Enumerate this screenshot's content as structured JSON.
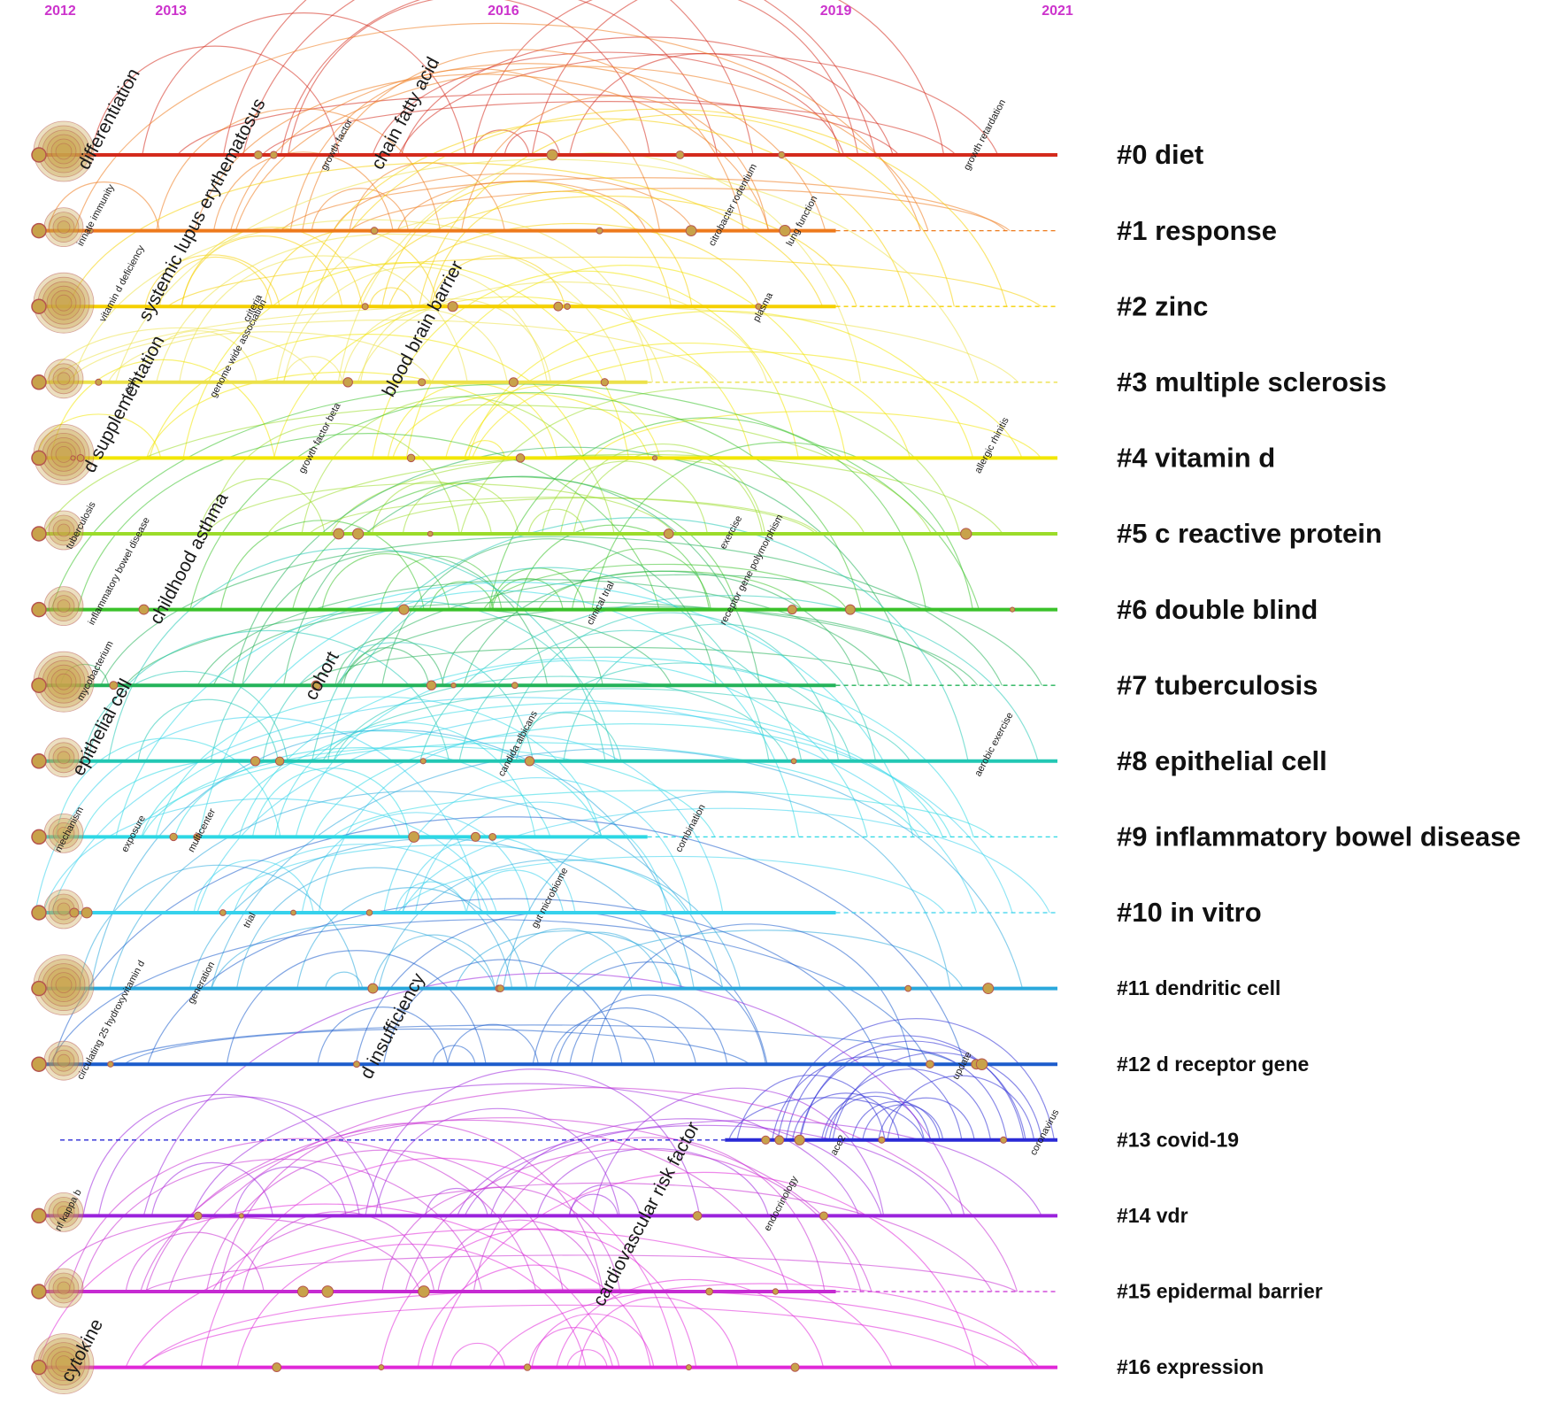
{
  "years": [
    "2012",
    "2013",
    "2016",
    "2019",
    "2021"
  ],
  "year_values": [
    2012,
    2013,
    2016,
    2019,
    2021
  ],
  "colors": {
    "year_text": "#cc33cc",
    "node_fill": "#c8a24a",
    "node_ring": "#b5544f"
  },
  "clusters": [
    {
      "label": "#0 diet",
      "color": "#d42a1c",
      "start": 2011.75,
      "solid_end": 2021,
      "dashed_end": 2021,
      "keywords": [
        {
          "text": "differentiation",
          "year": 2012.25,
          "big": true
        },
        {
          "text": "chain fatty acid",
          "year": 2014.9,
          "big": true
        },
        {
          "text": "growth factor",
          "year": 2014.4
        },
        {
          "text": "growth retardation",
          "year": 2020.2
        }
      ]
    },
    {
      "label": "#1 response",
      "color": "#ee7a1c",
      "start": 2011.75,
      "solid_end": 2019.0,
      "dashed_end": 2021,
      "keywords": [
        {
          "text": "innate immunity",
          "year": 2012.2
        },
        {
          "text": "citrobacter rodentium",
          "year": 2017.9
        },
        {
          "text": "lung function",
          "year": 2018.6
        }
      ]
    },
    {
      "label": "#2 zinc",
      "color": "#f5d000",
      "start": 2011.75,
      "solid_end": 2019.0,
      "dashed_end": 2021,
      "keywords": [
        {
          "text": "vitamin d deficiency",
          "year": 2012.4
        },
        {
          "text": "systemic lupus erythematosus",
          "year": 2012.8,
          "big": true
        },
        {
          "text": "criteria",
          "year": 2013.7
        },
        {
          "text": "plasma",
          "year": 2018.3
        }
      ]
    },
    {
      "label": "#3 multiple sclerosis",
      "color": "#ece14a",
      "start": 2011.75,
      "solid_end": 2017.3,
      "dashed_end": 2021,
      "keywords": [
        {
          "text": "t cell",
          "year": 2012.6
        },
        {
          "text": "genome wide association",
          "year": 2013.4
        },
        {
          "text": "blood brain barrier",
          "year": 2015.0,
          "big": true
        }
      ]
    },
    {
      "label": "#4 vitamin d",
      "color": "#f2e600",
      "start": 2011.75,
      "solid_end": 2021,
      "dashed_end": 2021,
      "keywords": [
        {
          "text": "d supplementation",
          "year": 2012.3,
          "big": true
        },
        {
          "text": "growth factor beta",
          "year": 2014.2
        },
        {
          "text": "allergic rhinitis",
          "year": 2020.3
        }
      ]
    },
    {
      "label": "#5 c reactive protein",
      "color": "#9bdc2a",
      "start": 2011.75,
      "solid_end": 2021,
      "dashed_end": 2021,
      "keywords": [
        {
          "text": "tuberculosis",
          "year": 2012.1
        },
        {
          "text": "exercise",
          "year": 2018.0
        }
      ]
    },
    {
      "label": "#6 double blind",
      "color": "#3ac22a",
      "start": 2011.75,
      "solid_end": 2021,
      "dashed_end": 2021,
      "keywords": [
        {
          "text": "inflammatory bowel disease",
          "year": 2012.3
        },
        {
          "text": "childhood asthma",
          "year": 2012.9,
          "big": true
        },
        {
          "text": "clinical trial",
          "year": 2016.8
        },
        {
          "text": "receptor gene polymorphism",
          "year": 2018.0
        }
      ]
    },
    {
      "label": "#7 tuberculosis",
      "color": "#24b35a",
      "start": 2011.75,
      "solid_end": 2019.0,
      "dashed_end": 2021,
      "keywords": [
        {
          "text": "mycobacterium",
          "year": 2012.2
        },
        {
          "text": "cohort",
          "year": 2014.3,
          "big": true
        }
      ]
    },
    {
      "label": "#8 epithelial cell",
      "color": "#22c8b4",
      "start": 2011.75,
      "solid_end": 2021,
      "dashed_end": 2021,
      "keywords": [
        {
          "text": "epithelial cell",
          "year": 2012.2,
          "big": true
        },
        {
          "text": "candida albicans",
          "year": 2016.0
        },
        {
          "text": "aerobic exercise",
          "year": 2020.3
        }
      ]
    },
    {
      "label": "#9 inflammatory bowel disease",
      "color": "#2cd8e4",
      "start": 2011.75,
      "solid_end": 2017.3,
      "dashed_end": 2021,
      "keywords": [
        {
          "text": "mechanism",
          "year": 2012.0
        },
        {
          "text": "exposure",
          "year": 2012.6
        },
        {
          "text": "multicenter",
          "year": 2013.2
        },
        {
          "text": "combination",
          "year": 2017.6
        }
      ]
    },
    {
      "label": "#10 in vitro",
      "color": "#36d2ec",
      "start": 2011.75,
      "solid_end": 2019.0,
      "dashed_end": 2021,
      "keywords": [
        {
          "text": "trial",
          "year": 2013.7
        },
        {
          "text": "gut microbiome",
          "year": 2016.3
        }
      ]
    },
    {
      "label": "#11 dendritic cell",
      "color": "#2aa8dc",
      "start": 2011.75,
      "solid_end": 2021,
      "dashed_end": 2021,
      "keywords": [
        {
          "text": "generation",
          "year": 2013.2
        }
      ]
    },
    {
      "label": "#12 d receptor gene",
      "color": "#1c5ccc",
      "start": 2011.75,
      "solid_end": 2021,
      "dashed_end": 2021,
      "keywords": [
        {
          "text": "circulating 25 hydroxyvitamin d",
          "year": 2012.2
        },
        {
          "text": "d insufficiency",
          "year": 2014.8,
          "big": true
        },
        {
          "text": "update",
          "year": 2020.1
        }
      ]
    },
    {
      "label": "#13 covid-19",
      "color": "#2a2ad6",
      "start": 2018.0,
      "solid_end": 2021,
      "dashed_end": 2021,
      "keywords": [
        {
          "text": "ace2",
          "year": 2019.0
        },
        {
          "text": "coronavirus",
          "year": 2020.8
        }
      ]
    },
    {
      "label": "#14 vdr",
      "color": "#9a22dc",
      "start": 2011.75,
      "solid_end": 2021,
      "dashed_end": 2021,
      "keywords": [
        {
          "text": "nf kappa b",
          "year": 2012.0
        },
        {
          "text": "endocrinology",
          "year": 2018.4
        }
      ]
    },
    {
      "label": "#15 epidermal barrier",
      "color": "#c62ad2",
      "start": 2011.75,
      "solid_end": 2019.0,
      "dashed_end": 2021,
      "keywords": [
        {
          "text": "cardiovascular risk factor",
          "year": 2016.9,
          "big": true
        }
      ]
    },
    {
      "label": "#16 expression",
      "color": "#e028d8",
      "start": 2011.75,
      "solid_end": 2021,
      "dashed_end": 2021,
      "keywords": [
        {
          "text": "cytokine",
          "year": 2012.1,
          "big": true
        }
      ]
    }
  ]
}
